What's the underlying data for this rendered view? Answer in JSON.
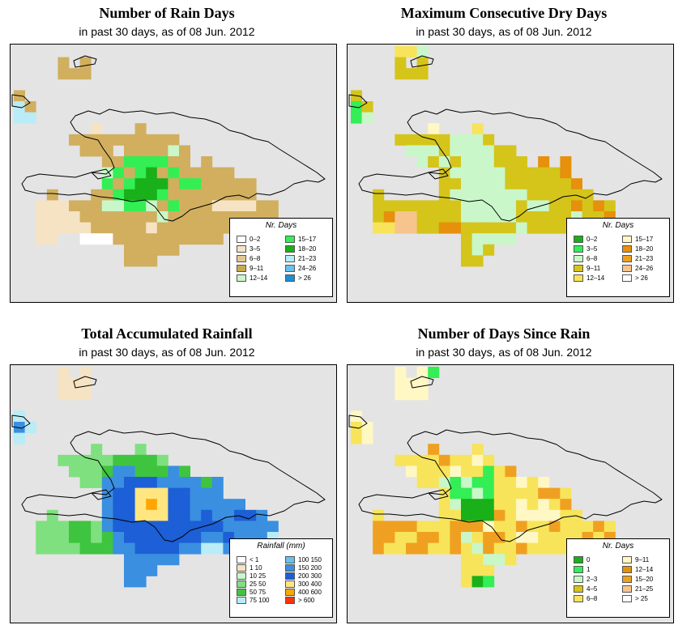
{
  "panels": [
    {
      "id": "rain-days",
      "title": "Number of Rain Days",
      "subtitle": "in past 30 days, as of  08 Jun. 2012",
      "legend": {
        "title": "Nr. Days",
        "items": [
          {
            "label": "0–2",
            "color": "#ffffff"
          },
          {
            "label": "3–5",
            "color": "#f5e3c3"
          },
          {
            "label": "6–8",
            "color": "#e2c894"
          },
          {
            "label": "9–11",
            "color": "#c9a94c"
          },
          {
            "label": "12–14",
            "color": "#c9f7c9"
          },
          {
            "label": "15–17",
            "color": "#33ee55"
          },
          {
            "label": "18–20",
            "color": "#19b019"
          },
          {
            "label": "21–23",
            "color": "#b9ecf6"
          },
          {
            "label": "24–26",
            "color": "#66c2ee"
          },
          {
            "label": "> 26",
            "color": "#1b8fd6"
          }
        ]
      },
      "grid": [
        "...........................",
        "....3.3.....................",
        "....333.....................",
        "............................",
        "3...........................",
        "E3..........................",
        "EE..........................",
        ".......2...3................",
        ".....3333333333.............",
        "......33393333A3............",
        "........33DDDD33.3..........",
        "........AD3DF3D33333........",
        "........D3DFFF3DD33333......",
        "...3...33DFFFD33333333......",
        "..222333AADDA3D333222233....",
        "..22223333333A3333333333....",
        "..22222333332333333322......",
        "..22..1113333333333.........",
        "..........33333.............",
        "..........333..............."
      ],
      "colors": {
        "1": "#ffffff",
        "2": "#f5e3c3",
        "3": "#d1af5e",
        "A": "#c9f7c9",
        "D": "#33ee55",
        "F": "#19b019",
        "E": "#b9ecf6"
      }
    },
    {
      "id": "dry-days",
      "title": "Maximum Consecutive Dry Days",
      "subtitle": "in past 30 days, as of  08 Jun. 2012",
      "legend": {
        "title": "Nr. Days",
        "items": [
          {
            "label": "0–2",
            "color": "#19b019"
          },
          {
            "label": "3–5",
            "color": "#33ee55"
          },
          {
            "label": "6–8",
            "color": "#c9f7c9"
          },
          {
            "label": "9–11",
            "color": "#d5c41a"
          },
          {
            "label": "12–14",
            "color": "#f7e45a"
          },
          {
            "label": "15–17",
            "color": "#fff8c4"
          },
          {
            "label": "18–20",
            "color": "#e6900c"
          },
          {
            "label": "21–23",
            "color": "#f0a020"
          },
          {
            "label": "24–26",
            "color": "#f7c48e"
          },
          {
            "label": "> 26",
            "color": "#ffffff"
          }
        ]
      },
      "grid": [
        "....55A.....................",
        "....4.4.....................",
        "....444.....................",
        "............................",
        "4...........................",
        "D4..........................",
        "DA..........................",
        ".......E...5................",
        "....44444AAA4...............",
        ".....AAA4AAAA44.............",
        "......A4A4AAA444.G.G........",
        "........4AAAAA44444G........",
        "........44AAAA444444G.......",
        "..4.....4AAAAAAA444444......",
        "..44444444AAAAA4AA44G4G4....",
        "..4GHH4444AAAAA44444A44G....",
        "..55HH44GG44444A44444.......",
        "..........4AAAA.............",
        "..........4A4...............",
        "..........44................"
      ],
      "colors": {
        "4": "#d5c41a",
        "5": "#f7e45a",
        "A": "#c9f7c9",
        "D": "#33ee55",
        "E": "#fff8c4",
        "G": "#e6900c",
        "H": "#f7c48e"
      }
    },
    {
      "id": "rainfall",
      "title": "Total Accumulated Rainfall",
      "subtitle": "in past 30 days, as of  08 Jun. 2012",
      "legend": {
        "title": "Rainfall (mm)",
        "items": [
          {
            "label": "< 1",
            "color": "#ffffff"
          },
          {
            "label": "1    10",
            "color": "#f5e3c3"
          },
          {
            "label": "10    25",
            "color": "#c9f7c9"
          },
          {
            "label": "25    50",
            "color": "#7fe07f"
          },
          {
            "label": "50    75",
            "color": "#3fc43f"
          },
          {
            "label": "75    100",
            "color": "#b9ecf6"
          },
          {
            "label": "100   150",
            "color": "#66c2ee"
          },
          {
            "label": "150   200",
            "color": "#3a8fe0"
          },
          {
            "label": "200   300",
            "color": "#1c5fd6"
          },
          {
            "label": "300   400",
            "color": "#ffe680"
          },
          {
            "label": "400   600",
            "color": "#ffa500"
          },
          {
            "label": "> 600",
            "color": "#ff3300"
          }
        ]
      },
      "grid": [
        "....2.2.....................",
        "....222.....................",
        "....222.....................",
        "............................",
        "L...........................",
        "ML..........................",
        "L...........................",
        ".......K...K................",
        "....KKKKKJJJJK..............",
        ".....KKKJMMJJJMJ............",
        "......KKMMNNNMMMMJM.........",
        "........MNNWWWNNMMM.........",
        "........MNNWXWNNMMMMM.......",
        "...K....MNNWWWNNMNMMNNM.....",
        "..KKKJJKMNNNNNNNNNNMMMMM....",
        "..KKKJJKJMNNNNNNNMMNMMML....",
        "..KKKKJJJMMNNNNMMLLMM.......",
        "..........MMMMM.............",
        "..........MMM...............",
        "..........MM................"
      ],
      "colors": {
        "2": "#f5e3c3",
        "J": "#3fc43f",
        "K": "#7fe07f",
        "L": "#b9ecf6",
        "M": "#3a8fe0",
        "N": "#1c5fd6",
        "W": "#ffe680",
        "X": "#ffa500"
      }
    },
    {
      "id": "days-since-rain",
      "title": "Number of Days Since Rain",
      "subtitle": "in past 30 days, as of  08 Jun. 2012",
      "legend": {
        "title": "Nr. Days",
        "items": [
          {
            "label": "0",
            "color": "#19b019"
          },
          {
            "label": "1",
            "color": "#33ee55"
          },
          {
            "label": "2–3",
            "color": "#c9f7c9"
          },
          {
            "label": "4–5",
            "color": "#d5c41a"
          },
          {
            "label": "6–8",
            "color": "#f7e45a"
          },
          {
            "label": "9–11",
            "color": "#fff8c4"
          },
          {
            "label": "12–14",
            "color": "#e6900c"
          },
          {
            "label": "15–20",
            "color": "#f0a020"
          },
          {
            "label": "21–25",
            "color": "#f7c48e"
          },
          {
            "label": "> 25",
            "color": "#ffffff"
          }
        ]
      },
      "grid": [
        "....E.ED....................",
        "....EEE.....................",
        "....EEE.....................",
        "............................",
        "E...........................",
        "5E..........................",
        "5E..........................",
        ".......G...5................",
        "....5555G55E5...............",
        ".....E555E55D5G.............",
        "......55ADADD55E5E..........",
        "........5DDAD5555GG5........",
        "........5AFFF55E5E5G........",
        "..5.....55FFFG5EEEE55.......",
        "..GGGG555GGGE55G55G555G5....",
        "..GG55GG5GA5GG5EE5555G5G....",
        "..G55GG55G5AG55G55555.......",
        "..........55AA5.............",
        "..........555...............",
        "..........5FD..............."
      ],
      "colors": {
        "5": "#f7e45a",
        "A": "#c9f7c9",
        "D": "#33ee55",
        "E": "#fff8c4",
        "F": "#19b019",
        "G": "#f0a020"
      }
    }
  ]
}
